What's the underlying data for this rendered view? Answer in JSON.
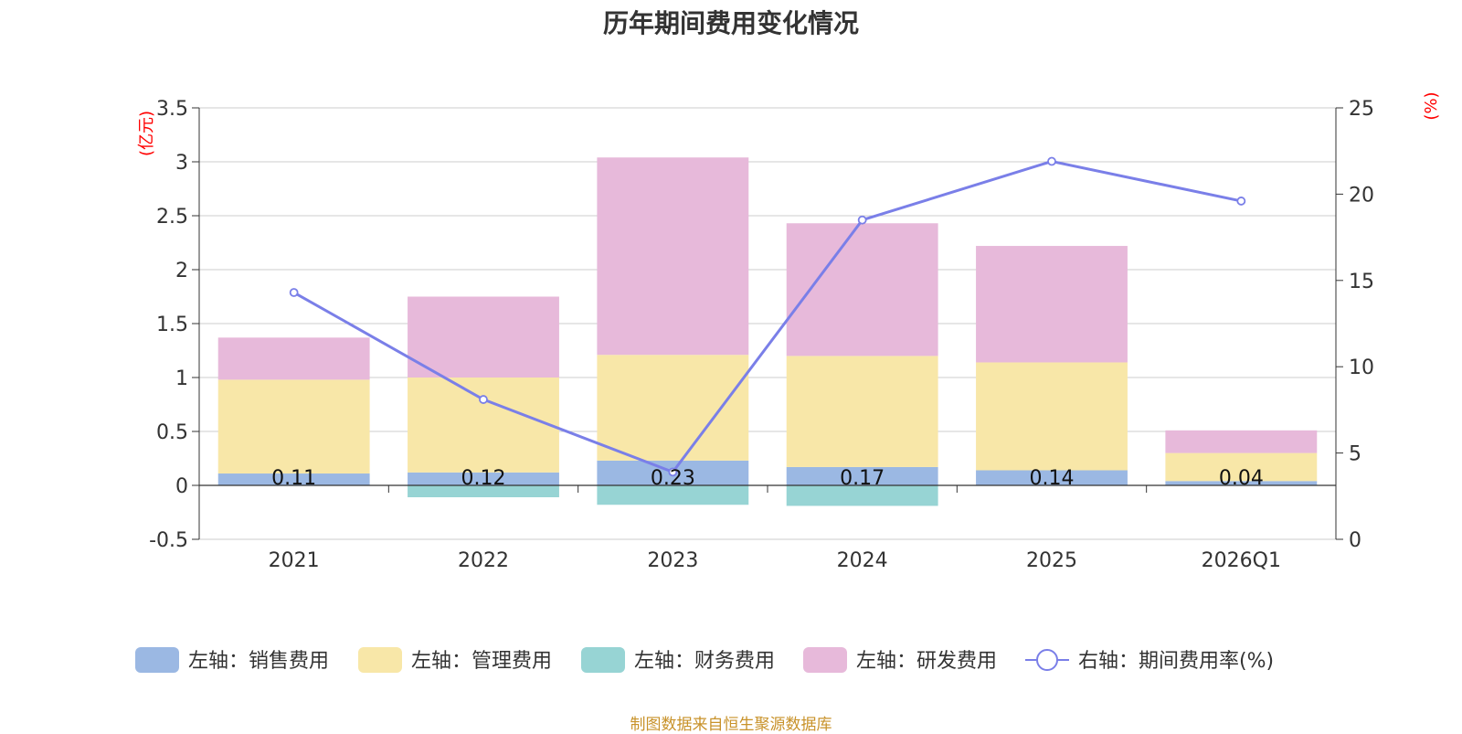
{
  "chart_data": {
    "type": "bar",
    "title": "历年期间费用变化情况",
    "categories": [
      "2021",
      "2022",
      "2023",
      "2024",
      "2025",
      "2026Q1"
    ],
    "left_axis": {
      "unit": "(亿元)",
      "min": -0.5,
      "max": 3.5,
      "ticks": [
        "-0.5",
        "0",
        "0.5",
        "1",
        "1.5",
        "2",
        "2.5",
        "3",
        "3.5"
      ]
    },
    "right_axis": {
      "unit": "(%)",
      "min": 0,
      "max": 25,
      "ticks": [
        "0",
        "5",
        "10",
        "15",
        "20",
        "25"
      ]
    },
    "series": [
      {
        "name": "左轴：销售费用",
        "type": "bar",
        "axis": "left",
        "color": "#9bb8e3",
        "values": [
          0.11,
          0.12,
          0.23,
          0.17,
          0.14,
          0.04
        ]
      },
      {
        "name": "左轴：管理费用",
        "type": "bar",
        "axis": "left",
        "color": "#f8e7a8",
        "values": [
          0.87,
          0.88,
          0.98,
          1.03,
          1.0,
          0.26
        ]
      },
      {
        "name": "左轴：财务费用",
        "type": "bar",
        "axis": "left",
        "color": "#97d4d4",
        "values": [
          0.0,
          -0.11,
          -0.18,
          -0.19,
          0.0,
          0.0
        ]
      },
      {
        "name": "左轴：研发费用",
        "type": "bar",
        "axis": "left",
        "color": "#e7b9da",
        "values": [
          0.39,
          0.75,
          1.83,
          1.23,
          1.08,
          0.21
        ]
      },
      {
        "name": "右轴：期间费用率(%)",
        "type": "line",
        "axis": "right",
        "color": "#7a7fe8",
        "values": [
          14.3,
          8.1,
          3.9,
          18.5,
          21.9,
          19.6
        ]
      }
    ],
    "data_labels": [
      "0.11",
      "0.12",
      "0.23",
      "0.17",
      "0.14",
      "0.04"
    ],
    "grid": true,
    "legend_position": "bottom"
  },
  "source_note": "制图数据来自恒生聚源数据库"
}
